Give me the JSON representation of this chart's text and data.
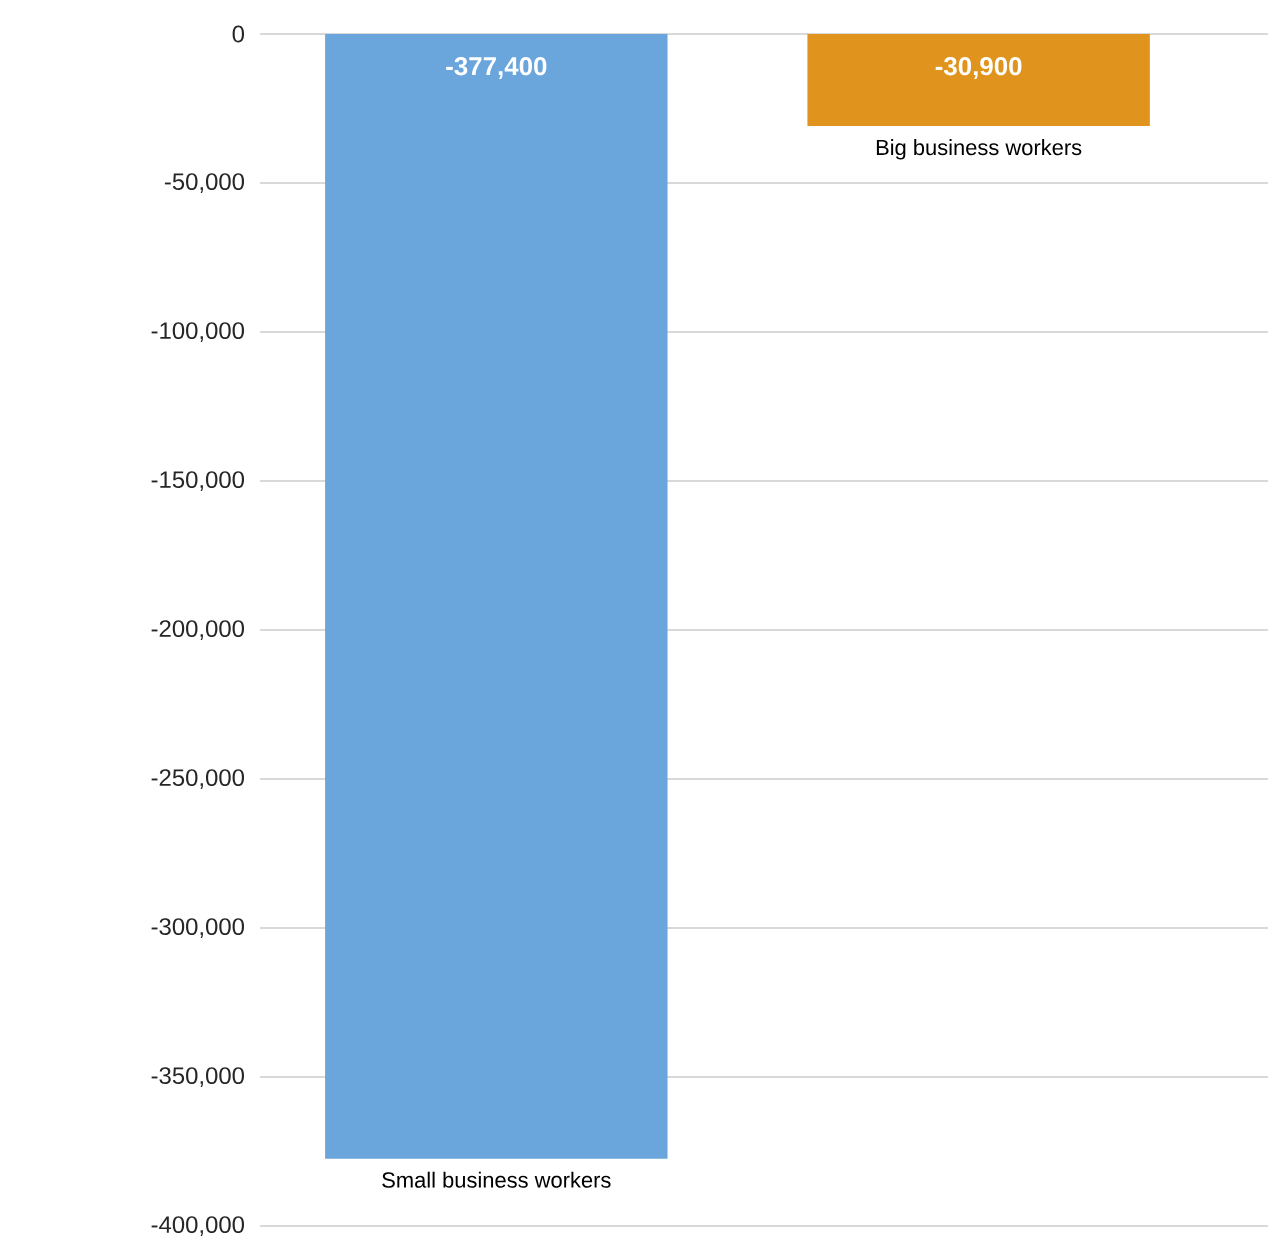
{
  "chart_data": {
    "type": "bar",
    "categories": [
      "Small business workers",
      "Big business workers"
    ],
    "values": [
      -377400,
      -30900
    ],
    "colors": [
      "#6aa5dc",
      "#e0941e"
    ],
    "value_labels": [
      "-377,400",
      "-30,900"
    ],
    "ylim": [
      -400000,
      0
    ],
    "yticks": [
      {
        "value": 0,
        "label": "0"
      },
      {
        "value": -50000,
        "label": "-50,000"
      },
      {
        "value": -100000,
        "label": "-100,000"
      },
      {
        "value": -150000,
        "label": "-150,000"
      },
      {
        "value": -200000,
        "label": "-200,000"
      },
      {
        "value": -250000,
        "label": "-250,000"
      },
      {
        "value": -300000,
        "label": "-300,000"
      },
      {
        "value": -350000,
        "label": "-350,000"
      },
      {
        "value": -400000,
        "label": "-400,000"
      }
    ],
    "grid": "y"
  }
}
